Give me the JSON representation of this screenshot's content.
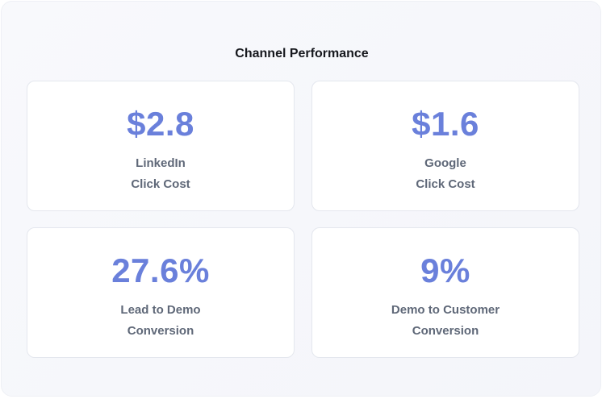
{
  "panel": {
    "title": "Channel Performance"
  },
  "metrics": [
    {
      "value": "$2.8",
      "label_line1": "LinkedIn",
      "label_line2": "Click Cost"
    },
    {
      "value": "$1.6",
      "label_line1": "Google",
      "label_line2": "Click Cost"
    },
    {
      "value": "27.6%",
      "label_line1": "Lead to Demo",
      "label_line2": "Conversion"
    },
    {
      "value": "9%",
      "label_line1": "Demo to Customer",
      "label_line2": "Conversion"
    }
  ],
  "colors": {
    "accent": "#6a80db",
    "label_text": "#5f6878",
    "title_text": "#16181d",
    "card_border": "#e4e7ee",
    "panel_background": "#f6f7fb"
  }
}
